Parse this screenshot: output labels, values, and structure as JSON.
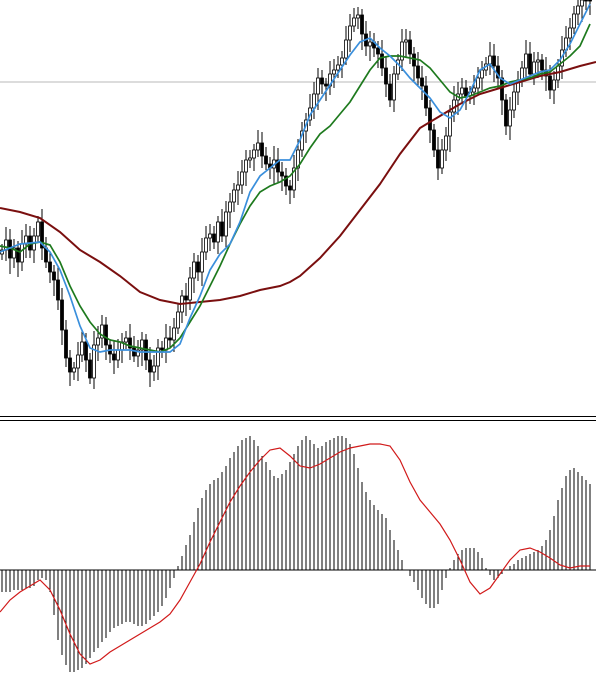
{
  "chart_data": [
    {
      "type": "candlestick",
      "panel": "price",
      "grid": false,
      "reference_line_y": 82,
      "colors": {
        "candle": "#000000",
        "ma_fast": "#3a8fdc",
        "ma_mid": "#1e7a1e",
        "ma_slow": "#7a0f0f",
        "reference_line": "#b8b8b8",
        "separator": "#000000"
      },
      "series": [
        {
          "kind": "candles",
          "x": [
            2,
            6,
            10,
            14,
            18,
            22,
            26,
            30,
            34,
            38,
            42,
            46,
            50,
            54,
            58,
            62,
            66,
            70,
            74,
            78,
            82,
            86,
            90,
            94,
            98,
            102,
            106,
            110,
            114,
            118,
            122,
            126,
            130,
            134,
            138,
            142,
            146,
            150,
            154,
            158,
            162,
            166,
            170,
            174,
            178,
            182,
            186,
            190,
            194,
            198,
            202,
            206,
            210,
            214,
            218,
            222,
            226,
            230,
            234,
            238,
            242,
            246,
            250,
            254,
            258,
            262,
            266,
            270,
            274,
            278,
            282,
            286,
            290,
            294,
            298,
            302,
            306,
            310,
            314,
            318,
            322,
            326,
            330,
            334,
            338,
            342,
            346,
            350,
            354,
            358,
            362,
            366,
            370,
            374,
            378,
            382,
            386,
            390,
            394,
            398,
            402,
            406,
            410,
            414,
            418,
            422,
            426,
            430,
            434,
            438,
            442,
            446,
            450,
            454,
            458,
            462,
            466,
            470,
            474,
            478,
            482,
            486,
            490,
            494,
            498,
            502,
            506,
            510,
            514,
            518,
            522,
            526,
            530,
            534,
            538,
            542,
            546,
            550,
            554,
            558,
            562,
            566,
            570,
            574,
            578,
            582,
            586,
            590
          ],
          "close": [
            250,
            240,
            258,
            248,
            262,
            244,
            236,
            250,
            236,
            222,
            248,
            262,
            272,
            280,
            300,
            330,
            358,
            372,
            368,
            355,
            342,
            360,
            378,
            345,
            338,
            325,
            345,
            354,
            360,
            350,
            342,
            338,
            348,
            356,
            350,
            340,
            360,
            372,
            366,
            348,
            350,
            338,
            340,
            328,
            312,
            296,
            300,
            278,
            262,
            272,
            252,
            238,
            234,
            242,
            222,
            236,
            212,
            202,
            190,
            185,
            172,
            160,
            158,
            150,
            143,
            156,
            164,
            168,
            160,
            172,
            176,
            186,
            190,
            168,
            150,
            131,
            120,
            108,
            94,
            78,
            84,
            86,
            74,
            70,
            65,
            58,
            40,
            26,
            18,
            15,
            34,
            46,
            42,
            48,
            54,
            68,
            84,
            100,
            74,
            60,
            42,
            40,
            54,
            66,
            78,
            86,
            108,
            130,
            150,
            168,
            150,
            136,
            112,
            100,
            94,
            88,
            96,
            92,
            88,
            78,
            70,
            64,
            56,
            66,
            78,
            100,
            126,
            110,
            92,
            80,
            68,
            54,
            74,
            62,
            60,
            70,
            76,
            90,
            80,
            66,
            50,
            38,
            28,
            14,
            6,
            0,
            0,
            0
          ]
        },
        {
          "kind": "line",
          "label": "ma_fast",
          "x": [
            0,
            20,
            40,
            50,
            60,
            70,
            80,
            90,
            100,
            110,
            120,
            130,
            140,
            150,
            160,
            170,
            180,
            190,
            200,
            210,
            220,
            230,
            240,
            250,
            260,
            270,
            280,
            290,
            300,
            310,
            320,
            330,
            340,
            350,
            360,
            370,
            380,
            390,
            400,
            410,
            420,
            430,
            440,
            450,
            460,
            470,
            480,
            490,
            500,
            510,
            520,
            530,
            540,
            550,
            560,
            570,
            580,
            590
          ],
          "y": [
            252,
            244,
            242,
            252,
            270,
            296,
            326,
            348,
            352,
            350,
            350,
            350,
            352,
            352,
            352,
            352,
            344,
            318,
            296,
            270,
            254,
            244,
            222,
            192,
            176,
            168,
            160,
            160,
            140,
            115,
            100,
            85,
            70,
            55,
            42,
            38,
            48,
            56,
            66,
            78,
            88,
            98,
            112,
            118,
            110,
            92,
            70,
            64,
            78,
            84,
            80,
            76,
            72,
            70,
            60,
            44,
            24,
            4
          ]
        },
        {
          "kind": "line",
          "label": "ma_mid",
          "x": [
            0,
            10,
            20,
            30,
            40,
            50,
            60,
            70,
            80,
            90,
            100,
            110,
            120,
            130,
            140,
            150,
            160,
            170,
            180,
            190,
            200,
            210,
            220,
            230,
            240,
            250,
            260,
            270,
            280,
            290,
            300,
            310,
            320,
            330,
            340,
            350,
            360,
            370,
            380,
            390,
            400,
            410,
            420,
            430,
            440,
            450,
            460,
            470,
            480,
            490,
            500,
            510,
            520,
            530,
            540,
            550,
            560,
            570,
            580,
            590
          ],
          "y": [
            246,
            248,
            252,
            244,
            242,
            245,
            262,
            286,
            306,
            322,
            334,
            340,
            342,
            346,
            348,
            350,
            352,
            348,
            338,
            322,
            306,
            286,
            266,
            244,
            224,
            206,
            192,
            186,
            182,
            176,
            164,
            148,
            134,
            126,
            114,
            102,
            86,
            70,
            58,
            56,
            56,
            58,
            60,
            68,
            80,
            92,
            98,
            96,
            92,
            88,
            86,
            82,
            80,
            78,
            74,
            72,
            64,
            56,
            46,
            24
          ]
        },
        {
          "kind": "line",
          "label": "ma_slow",
          "x": [
            0,
            20,
            40,
            60,
            80,
            100,
            120,
            140,
            160,
            180,
            200,
            220,
            240,
            260,
            280,
            290,
            300,
            320,
            340,
            360,
            380,
            400,
            420,
            440,
            460,
            480,
            500,
            520,
            540,
            560,
            580,
            596
          ],
          "y": [
            208,
            212,
            218,
            232,
            250,
            262,
            276,
            292,
            300,
            304,
            302,
            300,
            296,
            290,
            286,
            282,
            276,
            258,
            236,
            210,
            184,
            154,
            128,
            116,
            104,
            94,
            88,
            82,
            76,
            72,
            66,
            62
          ]
        }
      ]
    },
    {
      "type": "bar",
      "panel": "oscillator",
      "zero_line_y": 570,
      "colors": {
        "histogram": "#000000",
        "signal": "#d11a1a"
      },
      "series": [
        {
          "kind": "histogram",
          "x": [
            2,
            6,
            10,
            14,
            18,
            22,
            26,
            30,
            34,
            38,
            42,
            46,
            50,
            54,
            58,
            62,
            66,
            70,
            74,
            78,
            82,
            86,
            90,
            94,
            98,
            102,
            106,
            110,
            114,
            118,
            122,
            126,
            130,
            134,
            138,
            142,
            146,
            150,
            154,
            158,
            162,
            166,
            170,
            174,
            178,
            182,
            186,
            190,
            194,
            198,
            202,
            206,
            210,
            214,
            218,
            222,
            226,
            230,
            234,
            238,
            242,
            246,
            250,
            254,
            258,
            262,
            266,
            270,
            274,
            278,
            282,
            286,
            290,
            294,
            298,
            302,
            306,
            310,
            314,
            318,
            322,
            326,
            330,
            334,
            338,
            342,
            346,
            350,
            354,
            358,
            362,
            366,
            370,
            374,
            378,
            382,
            386,
            390,
            394,
            398,
            402,
            406,
            410,
            414,
            418,
            422,
            426,
            430,
            434,
            438,
            442,
            446,
            450,
            454,
            458,
            462,
            466,
            470,
            474,
            478,
            482,
            486,
            490,
            494,
            498,
            502,
            506,
            510,
            514,
            518,
            522,
            526,
            530,
            534,
            538,
            542,
            546,
            550,
            554,
            558,
            562,
            566,
            570,
            574,
            578,
            582,
            586,
            590
          ],
          "y": [
            592,
            592,
            592,
            590,
            590,
            590,
            588,
            588,
            586,
            580,
            578,
            580,
            592,
            615,
            640,
            655,
            665,
            672,
            672,
            670,
            668,
            664,
            658,
            652,
            648,
            642,
            638,
            632,
            628,
            626,
            624,
            622,
            622,
            624,
            626,
            626,
            624,
            620,
            616,
            612,
            606,
            598,
            588,
            578,
            566,
            556,
            545,
            535,
            522,
            508,
            498,
            490,
            484,
            480,
            478,
            472,
            466,
            458,
            452,
            446,
            440,
            438,
            436,
            440,
            446,
            456,
            462,
            470,
            476,
            478,
            474,
            470,
            462,
            454,
            446,
            440,
            436,
            440,
            444,
            448,
            446,
            442,
            440,
            438,
            436,
            436,
            438,
            444,
            454,
            468,
            482,
            492,
            500,
            505,
            510,
            514,
            518,
            530,
            540,
            550,
            560,
            570,
            576,
            582,
            590,
            598,
            604,
            608,
            608,
            604,
            590,
            578,
            568,
            560,
            554,
            550,
            548,
            548,
            548,
            552,
            558,
            568,
            575,
            580,
            578,
            574,
            570,
            566,
            564,
            560,
            558,
            556,
            554,
            552,
            550,
            546,
            540,
            530,
            516,
            500,
            488,
            476,
            470,
            468,
            472,
            476,
            480,
            484
          ]
        },
        {
          "kind": "line",
          "label": "signal",
          "x": [
            0,
            10,
            20,
            30,
            40,
            50,
            60,
            70,
            80,
            90,
            100,
            110,
            120,
            130,
            140,
            150,
            160,
            170,
            180,
            190,
            200,
            210,
            220,
            230,
            240,
            250,
            260,
            270,
            280,
            290,
            300,
            310,
            320,
            330,
            340,
            350,
            360,
            370,
            380,
            390,
            400,
            410,
            420,
            430,
            440,
            450,
            460,
            470,
            480,
            490,
            500,
            510,
            520,
            530,
            540,
            550,
            560,
            570,
            580,
            590
          ],
          "y": [
            612,
            600,
            592,
            586,
            580,
            590,
            610,
            634,
            654,
            664,
            660,
            652,
            646,
            640,
            634,
            628,
            622,
            614,
            600,
            582,
            564,
            542,
            522,
            502,
            486,
            472,
            460,
            450,
            448,
            456,
            466,
            468,
            464,
            458,
            452,
            448,
            446,
            444,
            444,
            446,
            460,
            482,
            500,
            512,
            524,
            540,
            560,
            582,
            594,
            588,
            574,
            560,
            550,
            548,
            552,
            558,
            565,
            568,
            566,
            566
          ]
        }
      ]
    }
  ]
}
